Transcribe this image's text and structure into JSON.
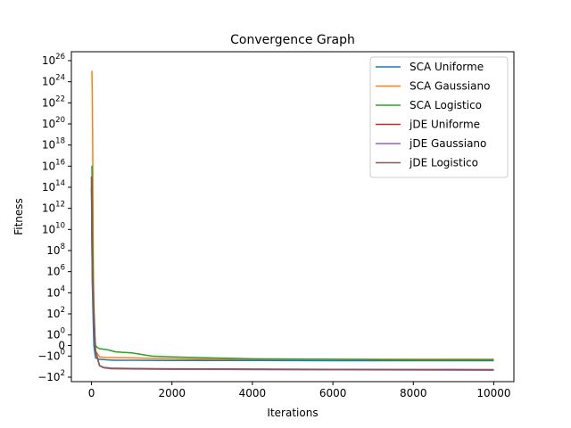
{
  "chart_data": {
    "type": "line",
    "title": "Convergence Graph",
    "xlabel": "Iterations",
    "ylabel": "Fitness",
    "xlim": [
      -500,
      10500
    ],
    "x_ticks": [
      {
        "value": 0,
        "label": "0"
      },
      {
        "value": 2000,
        "label": "2000"
      },
      {
        "value": 4000,
        "label": "4000"
      },
      {
        "value": 6000,
        "label": "6000"
      },
      {
        "value": 8000,
        "label": "8000"
      },
      {
        "value": 10000,
        "label": "10000"
      }
    ],
    "y_scale": "symlog",
    "y_ticks": [
      {
        "value": 1e+26,
        "base": "10",
        "exp": "26",
        "neg": false
      },
      {
        "value": 1e+24,
        "base": "10",
        "exp": "24",
        "neg": false
      },
      {
        "value": 1e+22,
        "base": "10",
        "exp": "22",
        "neg": false
      },
      {
        "value": 1e+20,
        "base": "10",
        "exp": "20",
        "neg": false
      },
      {
        "value": 1e+18,
        "base": "10",
        "exp": "18",
        "neg": false
      },
      {
        "value": 1e+16,
        "base": "10",
        "exp": "16",
        "neg": false
      },
      {
        "value": 100000000000000.0,
        "base": "10",
        "exp": "14",
        "neg": false
      },
      {
        "value": 1000000000000.0,
        "base": "10",
        "exp": "12",
        "neg": false
      },
      {
        "value": 10000000000.0,
        "base": "10",
        "exp": "10",
        "neg": false
      },
      {
        "value": 100000000.0,
        "base": "10",
        "exp": "8",
        "neg": false
      },
      {
        "value": 1000000.0,
        "base": "10",
        "exp": "6",
        "neg": false
      },
      {
        "value": 10000.0,
        "base": "10",
        "exp": "4",
        "neg": false
      },
      {
        "value": 100,
        "base": "10",
        "exp": "2",
        "neg": false
      },
      {
        "value": 1,
        "base": "10",
        "exp": "0",
        "neg": false
      },
      {
        "value": 0,
        "base": "0",
        "exp": "",
        "neg": false
      },
      {
        "value": -1,
        "base": "10",
        "exp": "0",
        "neg": true
      },
      {
        "value": -100,
        "base": "10",
        "exp": "2",
        "neg": true
      }
    ],
    "legend_position": "top-right",
    "series": [
      {
        "name": "SCA Uniforme",
        "color": "#1f77b4",
        "points": [
          [
            0,
            100000000000000.0
          ],
          [
            10,
            1000000000.0
          ],
          [
            20,
            100000.0
          ],
          [
            40,
            50
          ],
          [
            60,
            0
          ],
          [
            100,
            -1.5
          ],
          [
            200,
            -2
          ],
          [
            400,
            -2.3
          ],
          [
            600,
            -2.5
          ],
          [
            1000,
            -2.5
          ],
          [
            2000,
            -2.6
          ],
          [
            4000,
            -2.6
          ],
          [
            6000,
            -2.7
          ],
          [
            8000,
            -2.7
          ],
          [
            10000,
            -2.7
          ]
        ]
      },
      {
        "name": "SCA Gaussiano",
        "color": "#ff7f0e",
        "points": [
          [
            0,
            1e+25
          ],
          [
            10,
            1e+25
          ],
          [
            20,
            1e+23
          ],
          [
            30,
            1e+18
          ],
          [
            40,
            10000000000.0
          ],
          [
            50,
            100000.0
          ],
          [
            60,
            1000
          ],
          [
            80,
            5
          ],
          [
            100,
            -0.5
          ],
          [
            200,
            -1.2
          ],
          [
            400,
            -1.4
          ],
          [
            1000,
            -1.5
          ],
          [
            2000,
            -1.8
          ],
          [
            3000,
            -2
          ],
          [
            4000,
            -2
          ],
          [
            6000,
            -2
          ],
          [
            8000,
            -2
          ],
          [
            10000,
            -2
          ]
        ]
      },
      {
        "name": "SCA Logistico",
        "color": "#2ca02c",
        "points": [
          [
            0,
            1e+16
          ],
          [
            10,
            1e+16
          ],
          [
            20,
            1000000000000.0
          ],
          [
            40,
            1000000.0
          ],
          [
            60,
            100
          ],
          [
            80,
            1
          ],
          [
            100,
            0
          ],
          [
            150,
            -0.2
          ],
          [
            200,
            -0.3
          ],
          [
            400,
            -0.4
          ],
          [
            600,
            -0.6
          ],
          [
            1000,
            -0.7
          ],
          [
            1500,
            -1
          ],
          [
            2000,
            -1.2
          ],
          [
            3000,
            -1.5
          ],
          [
            4000,
            -1.8
          ],
          [
            6000,
            -2
          ],
          [
            8000,
            -2.3
          ],
          [
            10000,
            -2.3
          ]
        ]
      },
      {
        "name": "jDE Uniforme",
        "color": "#d62728",
        "points": [
          [
            0,
            1000000000000000.0
          ],
          [
            10,
            10000000000.0
          ],
          [
            20,
            1000000.0
          ],
          [
            40,
            10000.0
          ],
          [
            60,
            100
          ],
          [
            80,
            1
          ],
          [
            100,
            -0.5
          ],
          [
            200,
            -8
          ],
          [
            300,
            -12
          ],
          [
            500,
            -15
          ],
          [
            1000,
            -16
          ],
          [
            2000,
            -17
          ],
          [
            4000,
            -18
          ],
          [
            6000,
            -19
          ],
          [
            8000,
            -19.5
          ],
          [
            10000,
            -20
          ]
        ]
      },
      {
        "name": "jDE Gaussiano",
        "color": "#9467bd",
        "points": [
          [
            0,
            100000000000000.0
          ],
          [
            10,
            1000000000.0
          ],
          [
            20,
            100000.0
          ],
          [
            40,
            5000
          ],
          [
            60,
            100
          ],
          [
            80,
            1
          ],
          [
            100,
            -0.5
          ],
          [
            200,
            -8
          ],
          [
            300,
            -13
          ],
          [
            500,
            -16
          ],
          [
            1000,
            -17
          ],
          [
            2000,
            -18
          ],
          [
            4000,
            -19
          ],
          [
            6000,
            -20
          ],
          [
            8000,
            -21
          ],
          [
            10000,
            -22
          ]
        ]
      },
      {
        "name": "jDE Logistico",
        "color": "#8c564b",
        "points": [
          [
            0,
            1000000000000000.0
          ],
          [
            10,
            10000000000.0
          ],
          [
            20,
            1000000.0
          ],
          [
            40,
            10000.0
          ],
          [
            60,
            100
          ],
          [
            80,
            1
          ],
          [
            100,
            -0.5
          ],
          [
            200,
            -8
          ],
          [
            300,
            -12
          ],
          [
            500,
            -14
          ],
          [
            1000,
            -15
          ],
          [
            2000,
            -16
          ],
          [
            4000,
            -17
          ],
          [
            6000,
            -18
          ],
          [
            8000,
            -18.5
          ],
          [
            10000,
            -19
          ]
        ]
      }
    ]
  }
}
